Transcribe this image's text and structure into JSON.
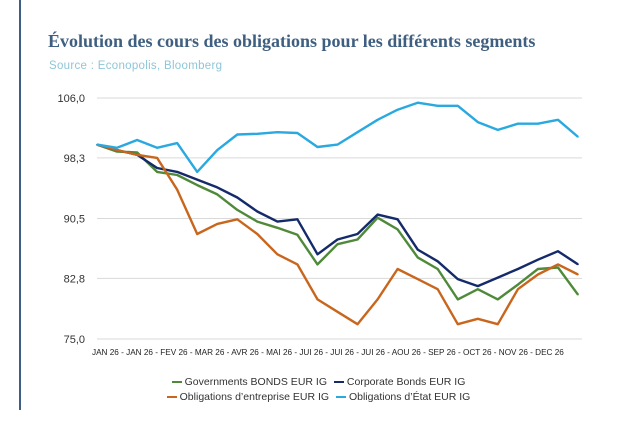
{
  "title": "Évolution des cours des obligations pour les différents segments",
  "source": "Source : Econopolis, Bloomberg",
  "chart_data": {
    "type": "line",
    "xlabel": "JAN 26 - JAN 26 - FEV 26 - MAR 26 - AVR 26 - MAI 26 - JUI 26 - JUI 26 - JUI 26 - AOU 26 - SEP 26 - OCT 26 - NOV 26 - DEC 26",
    "ylabel": "",
    "ylim": [
      75.0,
      106.0
    ],
    "yticks": [
      "106,0",
      "98,3",
      "90,5",
      "82,8",
      "75,0"
    ],
    "ytick_values": [
      106.0,
      98.3,
      90.5,
      82.8,
      75.0
    ],
    "grid": true,
    "legend_position": "bottom",
    "x": [
      0,
      1,
      2,
      3,
      4,
      5,
      6,
      7,
      8,
      9,
      10,
      11,
      12,
      13,
      14,
      15,
      16,
      17,
      18,
      19,
      20,
      21,
      22,
      23,
      24
    ],
    "series": [
      {
        "name": "Governments BONDS EUR IG",
        "color": "#4f8a3a",
        "values": [
          100,
          99.1,
          99.0,
          96.5,
          96.1,
          94.8,
          93.6,
          91.6,
          90.1,
          89.3,
          88.4,
          84.6,
          87.2,
          87.8,
          90.6,
          89.1,
          85.5,
          84.0,
          80.1,
          81.4,
          80.1,
          82.0,
          84.0,
          84.2,
          80.7
        ]
      },
      {
        "name": "Corporate Bonds EUR IG",
        "color": "#142a6a",
        "values": [
          100,
          99.3,
          98.7,
          97.0,
          96.5,
          95.5,
          94.5,
          93.2,
          91.4,
          90.1,
          90.4,
          85.9,
          87.8,
          88.5,
          91.0,
          90.4,
          86.5,
          85.0,
          82.7,
          81.8,
          82.9,
          84.0,
          85.2,
          86.3,
          84.6
        ]
      },
      {
        "name": "Obligations d’entreprise EUR IG",
        "color": "#c9661e",
        "values": [
          100,
          99.3,
          98.7,
          98.3,
          94.2,
          88.5,
          89.8,
          90.4,
          88.5,
          85.9,
          84.6,
          80.1,
          78.5,
          76.9,
          80.1,
          84.0,
          82.7,
          81.4,
          76.9,
          77.6,
          76.9,
          81.4,
          83.3,
          84.6,
          83.3
        ]
      },
      {
        "name": "Obligations d’État EUR IG",
        "color": "#2aa8e0",
        "values": [
          100.0,
          99.6,
          100.6,
          99.6,
          100.2,
          96.5,
          99.3,
          101.3,
          101.4,
          101.6,
          101.5,
          99.7,
          100.0,
          101.6,
          103.2,
          104.5,
          105.4,
          105.0,
          105.0,
          102.9,
          101.9,
          102.7,
          102.7,
          103.2,
          101.0
        ]
      }
    ]
  }
}
